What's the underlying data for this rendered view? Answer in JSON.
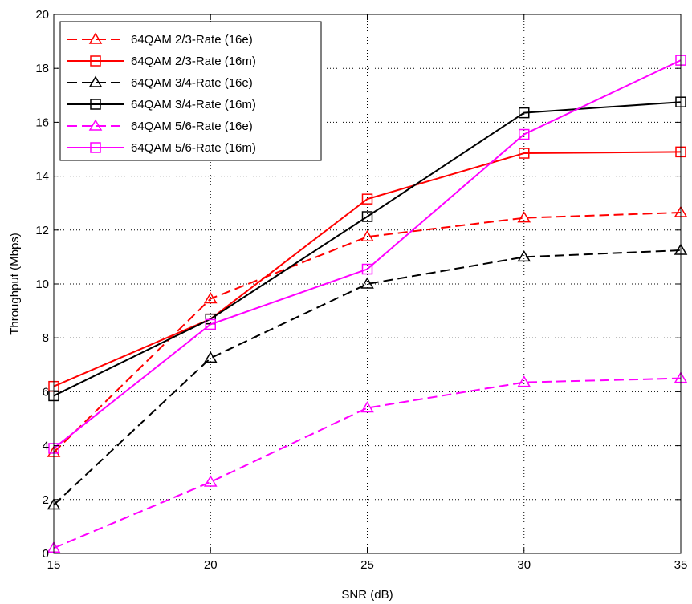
{
  "chart_data": {
    "type": "line",
    "xlabel": "SNR (dB)",
    "ylabel": "Throughput (Mbps)",
    "xlim": [
      15,
      35
    ],
    "ylim": [
      0,
      20
    ],
    "xticks": [
      15,
      20,
      25,
      30,
      35
    ],
    "yticks": [
      0,
      2,
      4,
      6,
      8,
      10,
      12,
      14,
      16,
      18,
      20
    ],
    "grid": true,
    "legend_position": "top-left",
    "x": [
      15,
      20,
      25,
      30,
      35
    ],
    "series": [
      {
        "name": "64QAM 2/3-Rate (16e)",
        "values": [
          3.75,
          9.45,
          11.75,
          12.45,
          12.65
        ],
        "color": "#ff0000",
        "dash": "dashed",
        "marker": "triangle"
      },
      {
        "name": "64QAM 2/3-Rate (16m)",
        "values": [
          6.2,
          8.7,
          13.15,
          14.85,
          14.9
        ],
        "color": "#ff0000",
        "dash": "solid",
        "marker": "square"
      },
      {
        "name": "64QAM 3/4-Rate (16e)",
        "values": [
          1.8,
          7.25,
          10.0,
          11.0,
          11.25
        ],
        "color": "#000000",
        "dash": "dashed",
        "marker": "triangle"
      },
      {
        "name": "64QAM 3/4-Rate (16m)",
        "values": [
          5.85,
          8.7,
          12.5,
          16.35,
          16.75
        ],
        "color": "#000000",
        "dash": "solid",
        "marker": "square"
      },
      {
        "name": "64QAM 5/6-Rate (16e)",
        "values": [
          0.2,
          2.65,
          5.4,
          6.35,
          6.5
        ],
        "color": "#ff00ff",
        "dash": "dashed",
        "marker": "triangle"
      },
      {
        "name": "64QAM 5/6-Rate (16m)",
        "values": [
          3.9,
          8.5,
          10.55,
          15.55,
          18.3
        ],
        "color": "#ff00ff",
        "dash": "solid",
        "marker": "square"
      }
    ]
  }
}
